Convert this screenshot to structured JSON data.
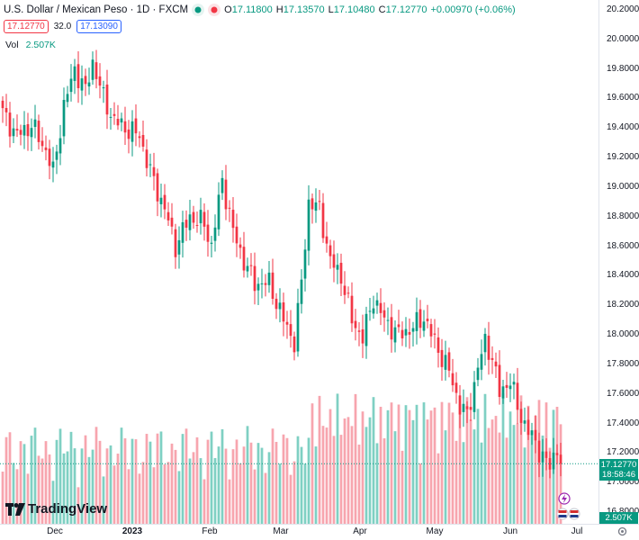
{
  "header": {
    "title": "U.S. Dollar / Mexican Peso · 1D · FXCM",
    "ohlc": [
      {
        "label": "O",
        "value": "17.11800"
      },
      {
        "label": "H",
        "value": "17.13570"
      },
      {
        "label": "L",
        "value": "17.10480"
      },
      {
        "label": "C",
        "value": "17.12770"
      },
      {
        "label": "",
        "value": "+0.00970 (+0.06%)"
      }
    ],
    "sell_price": "17.12770",
    "spread": "32.0",
    "buy_price": "17.13090",
    "volume_label": "Vol",
    "volume_value": "2.507K"
  },
  "price_axis": {
    "ticks": [
      "20.20000",
      "20.00000",
      "19.80000",
      "19.60000",
      "19.40000",
      "19.20000",
      "19.00000",
      "18.80000",
      "18.60000",
      "18.40000",
      "18.20000",
      "18.00000",
      "17.80000",
      "17.60000",
      "17.40000",
      "17.20000",
      "17.00000",
      "16.80000"
    ],
    "last_price": "17.12770",
    "countdown": "18:58:46",
    "volume_tag": "2.507K"
  },
  "time_axis": {
    "ticks": [
      "Dec",
      "2023",
      "Feb",
      "Mar",
      "Apr",
      "May",
      "Jun",
      "Jul"
    ]
  },
  "branding": {
    "logo_text": "TradingView"
  },
  "colors": {
    "up": "#089981",
    "down": "#f23645",
    "up_vol": "#7fd0c3",
    "down_vol": "#f7a5ae"
  },
  "chart_data": {
    "type": "candlestick",
    "symbol": "USDMXN",
    "interval": "1D",
    "ylim": [
      16.8,
      20.2
    ],
    "anchors": [
      {
        "t": 0,
        "c": 19.5
      },
      {
        "t": 4,
        "c": 19.35
      },
      {
        "t": 8,
        "c": 19.42
      },
      {
        "t": 12,
        "c": 19.25
      },
      {
        "t": 14,
        "c": 19.1
      },
      {
        "t": 17,
        "c": 19.55
      },
      {
        "t": 20,
        "c": 19.8
      },
      {
        "t": 23,
        "c": 19.65
      },
      {
        "t": 25,
        "c": 19.85
      },
      {
        "t": 28,
        "c": 19.6
      },
      {
        "t": 31,
        "c": 19.45
      },
      {
        "t": 34,
        "c": 19.4
      },
      {
        "t": 38,
        "c": 19.35
      },
      {
        "t": 41,
        "c": 19.1
      },
      {
        "t": 45,
        "c": 18.85
      },
      {
        "t": 48,
        "c": 18.6
      },
      {
        "t": 52,
        "c": 18.8
      },
      {
        "t": 56,
        "c": 18.75
      },
      {
        "t": 58,
        "c": 18.6
      },
      {
        "t": 61,
        "c": 19.05
      },
      {
        "t": 64,
        "c": 18.7
      },
      {
        "t": 67,
        "c": 18.5
      },
      {
        "t": 70,
        "c": 18.35
      },
      {
        "t": 74,
        "c": 18.35
      },
      {
        "t": 78,
        "c": 18.1
      },
      {
        "t": 81,
        "c": 17.95
      },
      {
        "t": 83,
        "c": 18.35
      },
      {
        "t": 85,
        "c": 18.9
      },
      {
        "t": 88,
        "c": 18.85
      },
      {
        "t": 91,
        "c": 18.5
      },
      {
        "t": 94,
        "c": 18.4
      },
      {
        "t": 97,
        "c": 18.1
      },
      {
        "t": 100,
        "c": 17.98
      },
      {
        "t": 103,
        "c": 18.25
      },
      {
        "t": 106,
        "c": 18.1
      },
      {
        "t": 110,
        "c": 18.0
      },
      {
        "t": 114,
        "c": 18.05
      },
      {
        "t": 117,
        "c": 18.12
      },
      {
        "t": 120,
        "c": 17.95
      },
      {
        "t": 124,
        "c": 17.75
      },
      {
        "t": 127,
        "c": 17.52
      },
      {
        "t": 129,
        "c": 17.45
      },
      {
        "t": 132,
        "c": 17.78
      },
      {
        "t": 134,
        "c": 17.95
      },
      {
        "t": 136,
        "c": 17.85
      },
      {
        "t": 138,
        "c": 17.6
      },
      {
        "t": 141,
        "c": 17.7
      },
      {
        "t": 143,
        "c": 17.5
      },
      {
        "t": 146,
        "c": 17.35
      },
      {
        "t": 149,
        "c": 17.22
      },
      {
        "t": 152,
        "c": 17.1
      },
      {
        "t": 154,
        "c": 17.25
      },
      {
        "t": 155,
        "c": 17.12
      }
    ],
    "last_close": 17.1277,
    "volume_range": [
      0,
      2.507
    ]
  }
}
